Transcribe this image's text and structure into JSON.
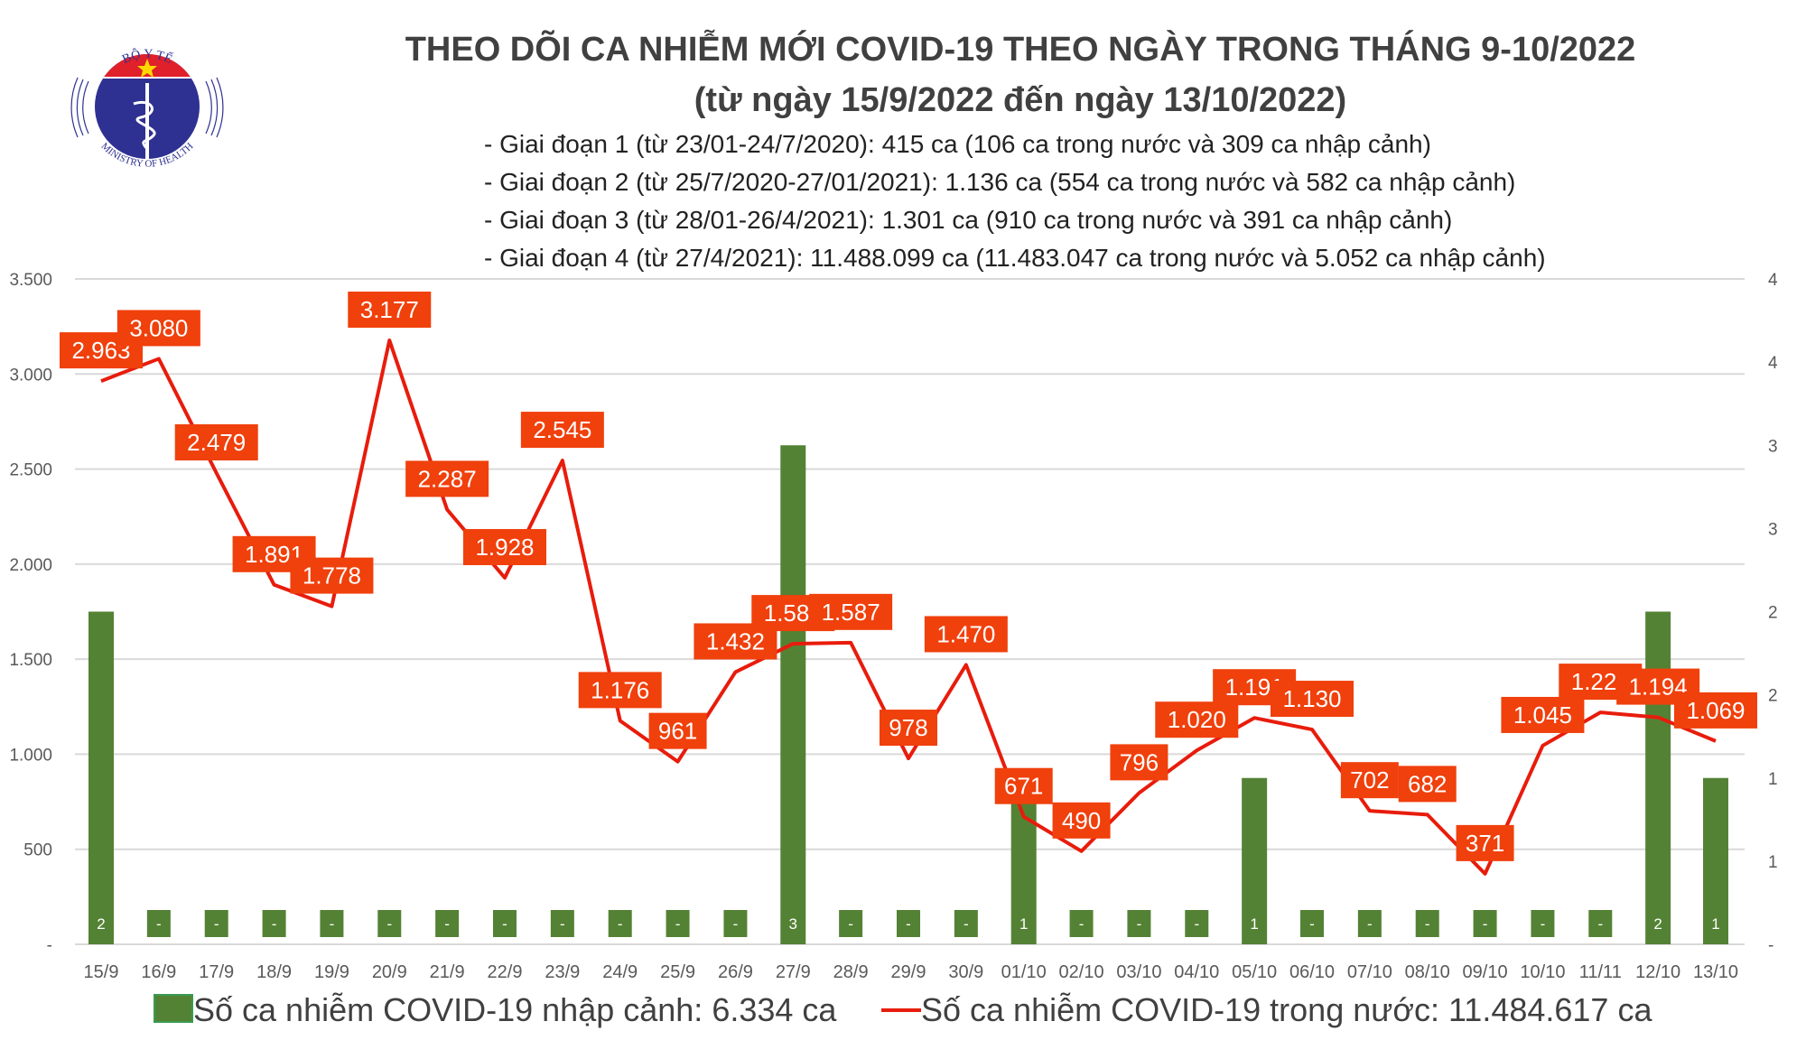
{
  "logo": {
    "text_top": "BỘ Y TẾ",
    "text_bottom": "MINISTRY OF HEALTH"
  },
  "title": "THEO DÕI CA NHIỄM MỚI COVID-19 THEO NGÀY TRONG THÁNG 9-10/2022",
  "subtitle": "(từ ngày 15/9/2022 đến ngày 13/10/2022)",
  "phases": [
    "- Giai đoạn 1 (từ 23/01-24/7/2020): 415 ca (106 ca trong nước và 309 ca nhập cảnh)",
    "- Giai đoạn 2 (từ 25/7/2020-27/01/2021): 1.136 ca (554 ca trong nước và 582 ca nhập cảnh)",
    "- Giai đoạn 3 (từ 28/01-26/4/2021): 1.301 ca (910 ca trong nước và 391 ca nhập cảnh)",
    "- Giai đoạn 4 (từ 27/4/2021): 11.488.099 ca (11.483.047 ca trong nước và 5.052 ca nhập cảnh)"
  ],
  "chart_data": {
    "type": "bar+line",
    "categories": [
      "15/9",
      "16/9",
      "17/9",
      "18/9",
      "19/9",
      "20/9",
      "21/9",
      "22/9",
      "23/9",
      "24/9",
      "25/9",
      "26/9",
      "27/9",
      "28/9",
      "29/9",
      "30/9",
      "01/10",
      "02/10",
      "03/10",
      "04/10",
      "05/10",
      "06/10",
      "07/10",
      "08/10",
      "09/10",
      "10/10",
      "11/11",
      "12/10",
      "13/10"
    ],
    "series": [
      {
        "name": "Số ca nhiễm COVID-19 nhập cảnh: 6.334 ca",
        "type": "bar",
        "axis": "right",
        "color": "#548235",
        "values": [
          2,
          0,
          0,
          0,
          0,
          0,
          0,
          0,
          0,
          0,
          0,
          0,
          3,
          0,
          0,
          0,
          1,
          0,
          0,
          0,
          1,
          0,
          0,
          0,
          0,
          0,
          0,
          2,
          1
        ]
      },
      {
        "name": "Số ca nhiễm COVID-19 trong nước: 11.484.617 ca",
        "type": "line",
        "axis": "left",
        "color": "#e81c0c",
        "label_color": "#f0400c",
        "values": [
          2963,
          3080,
          2479,
          1891,
          1778,
          3177,
          2287,
          1928,
          2545,
          1176,
          961,
          1432,
          1581,
          1587,
          978,
          1470,
          671,
          490,
          796,
          1020,
          1191,
          1130,
          702,
          682,
          371,
          1045,
          1220,
          1194,
          1069
        ]
      }
    ],
    "left_axis": {
      "ylim": [
        0,
        3500
      ],
      "ticks": [
        "-",
        "500",
        "1.000",
        "1.500",
        "2.000",
        "2.500",
        "3.000",
        "3.500"
      ]
    },
    "right_axis": {
      "ylim": [
        0,
        4
      ],
      "ticks": [
        "-",
        "1",
        "1",
        "2",
        "2",
        "3",
        "3",
        "4",
        "4"
      ]
    },
    "grid": true,
    "legend": "bottom"
  }
}
